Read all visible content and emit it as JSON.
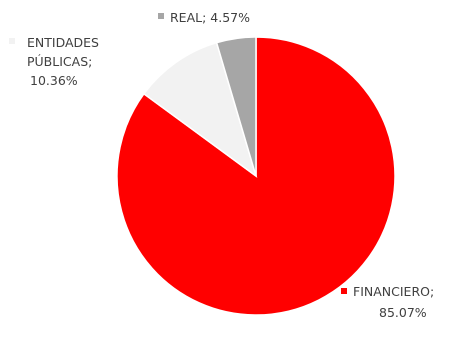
{
  "chart_data": {
    "type": "pie",
    "title": "",
    "start_angle_deg": 0,
    "direction": "clockwise",
    "slices": [
      {
        "label": "FINANCIERO",
        "value": 85.07,
        "display": "85.07%",
        "color": "#ff0000"
      },
      {
        "label": "ENTIDADES PÚBLICAS",
        "value": 10.36,
        "display": "10.36%",
        "color": "#f2f2f2"
      },
      {
        "label": "REAL",
        "value": 4.57,
        "display": "4.57%",
        "color": "#a6a6a6"
      }
    ],
    "legend": "none",
    "data_labels": "outside, category; percentage with legend key"
  },
  "labels": {
    "financiero": {
      "line1": "FINANCIERO;",
      "line2": "85.07%"
    },
    "entidades": {
      "line1": "ENTIDADES",
      "line2": "PÚBLICAS;",
      "line3": "10.36%"
    },
    "real": {
      "line1": "REAL; 4.57%"
    }
  }
}
